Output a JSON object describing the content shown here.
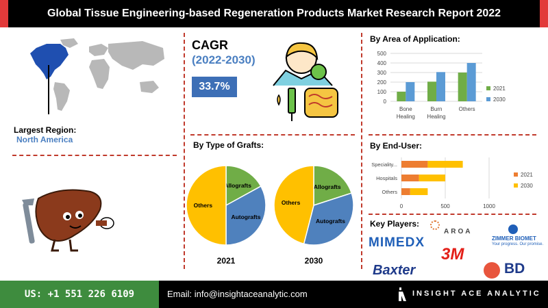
{
  "header": {
    "title": "Global Tissue Engineering-based Regeneration Products Market Research Report 2022"
  },
  "region": {
    "label": "Largest Region:",
    "value": "North America"
  },
  "cagr": {
    "title": "CAGR",
    "period": "(2022-2030)",
    "value": "33.7%"
  },
  "sections": {
    "application": "By Area of Application:",
    "grafts": "By Type of Grafts:",
    "end_user": "By End-User:",
    "players": "Key Players:"
  },
  "colors": {
    "y2021": "#70ad47",
    "y2030": "#5b9bd5",
    "bar2021": "#ed7d31",
    "bar2030": "#ffc000",
    "pie_others": "#ffc000",
    "pie_allografts": "#70ad47",
    "pie_autografts": "#4f81bd",
    "accent": "#c0392b"
  },
  "chart_data": [
    {
      "type": "bar",
      "title": "By Area of Application:",
      "categories": [
        [
          "Bone",
          "Healing"
        ],
        [
          "Burn",
          "Healing"
        ],
        [
          "Others"
        ]
      ],
      "series": [
        {
          "name": "2021",
          "values": [
            100,
            205,
            300
          ]
        },
        {
          "name": "2030",
          "values": [
            200,
            305,
            400
          ]
        }
      ],
      "ylim": [
        0,
        500
      ],
      "yticks": [
        0,
        100,
        200,
        300,
        400,
        500
      ],
      "grid": true,
      "legend": "right"
    },
    {
      "type": "bar",
      "orientation": "horizontal",
      "stacked": true,
      "title": "By End-User:",
      "categories": [
        "Speciality...",
        "Hospitals",
        "Others"
      ],
      "series": [
        {
          "name": "2021",
          "values": [
            300,
            200,
            100
          ]
        },
        {
          "name": "2030",
          "values": [
            400,
            300,
            200
          ]
        }
      ],
      "xlim": [
        0,
        1000
      ],
      "xticks": [
        0,
        500,
        1000
      ],
      "grid": true,
      "legend": "right"
    },
    {
      "type": "pie",
      "year": "2021",
      "slices": [
        {
          "label": "Others",
          "value": 50
        },
        {
          "label": "Allografts",
          "value": 17
        },
        {
          "label": "Autografts",
          "value": 33
        }
      ]
    },
    {
      "type": "pie",
      "year": "2030",
      "slices": [
        {
          "label": "Others",
          "value": 46
        },
        {
          "label": "Allografts",
          "value": 20
        },
        {
          "label": "Autografts",
          "value": 34
        }
      ]
    }
  ],
  "players": [
    "MIMEDX",
    "AROA",
    "ZIMMER BIOMET",
    "Your progress. Our promise.",
    "3M",
    "Baxter",
    "BD"
  ],
  "footer": {
    "phone": "US: +1 551 226 6109",
    "email": "Email: info@insightaceanalytic.com",
    "brand": "INSIGHT ACE ANALYTIC"
  }
}
